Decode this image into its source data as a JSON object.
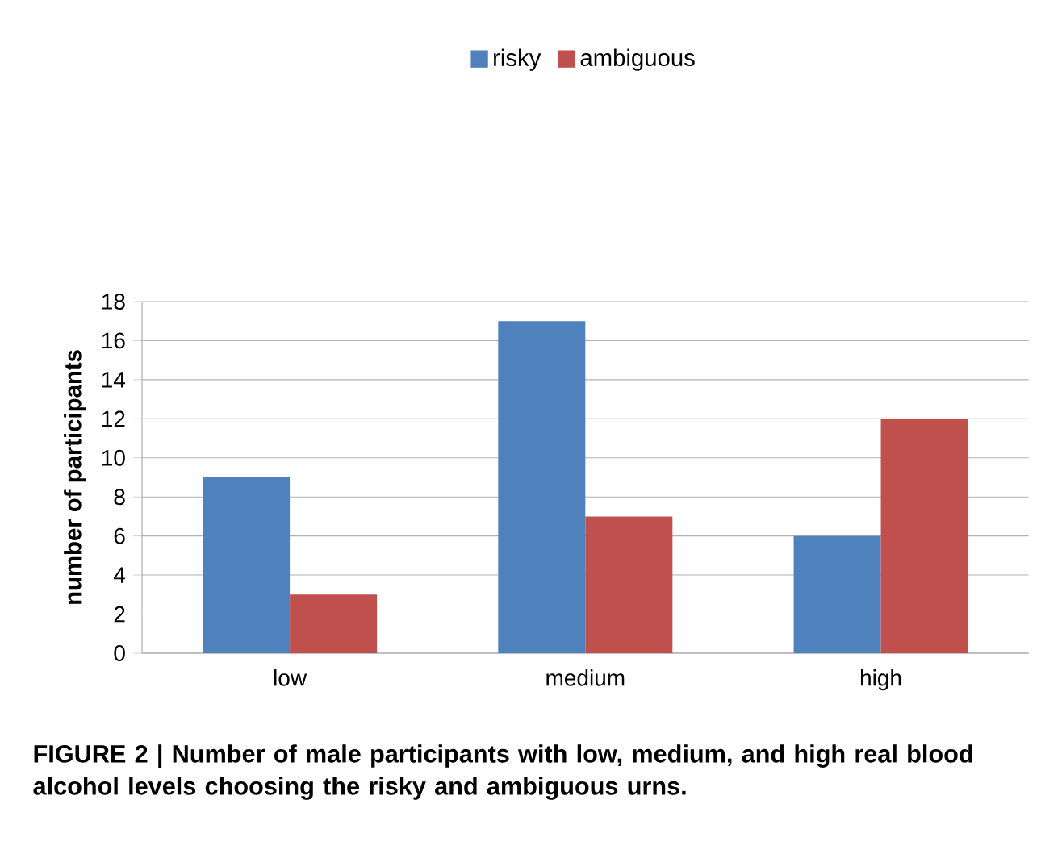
{
  "chart_data": {
    "type": "bar",
    "categories": [
      "low",
      "medium",
      "high"
    ],
    "series": [
      {
        "name": "risky",
        "color": "#4f81bd",
        "values": [
          9,
          17,
          6
        ]
      },
      {
        "name": "ambiguous",
        "color": "#c0504d",
        "values": [
          3,
          7,
          12
        ]
      }
    ],
    "ylabel": "number of participants",
    "ylim": [
      0,
      18
    ],
    "yticks": [
      0,
      2,
      4,
      6,
      8,
      10,
      12,
      14,
      16,
      18
    ],
    "grid": "y",
    "legend": "top",
    "annotations": [
      "FIGURE 2 | Number of male participants with low, medium, and high real blood alcohol levels choosing the risky and ambiguous urns."
    ]
  }
}
